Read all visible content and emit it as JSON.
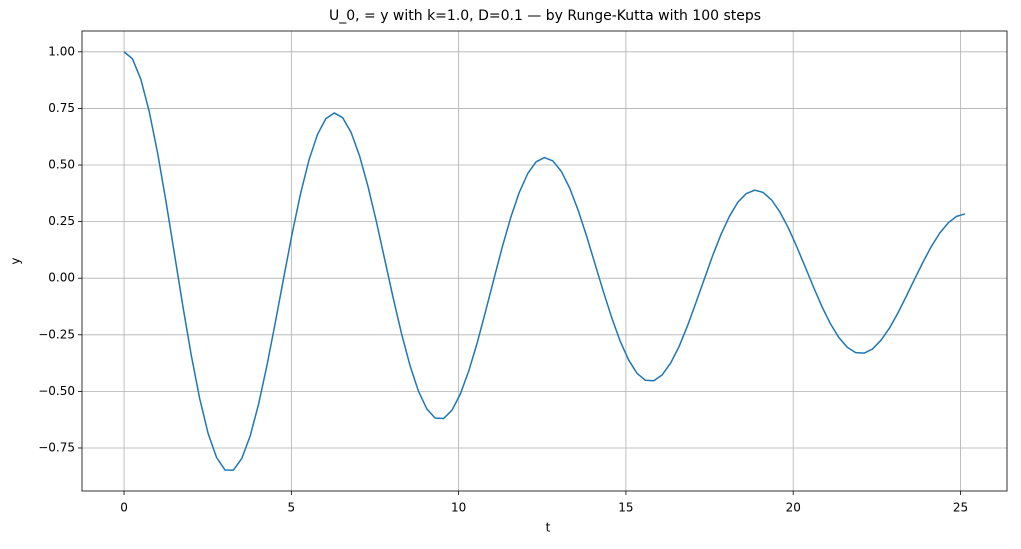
{
  "chart_data": {
    "type": "line",
    "title": "U_0, = y with k=1.0, D=0.1 — by Runge-Kutta with 100 steps",
    "x_label": "t",
    "y_label": "y",
    "x": [
      0,
      0.251,
      0.503,
      0.754,
      1.005,
      1.257,
      1.508,
      1.759,
      2.011,
      2.262,
      2.513,
      2.765,
      3.016,
      3.267,
      3.519,
      3.77,
      4.021,
      4.273,
      4.524,
      4.775,
      5.027,
      5.278,
      5.529,
      5.781,
      6.032,
      6.283,
      6.535,
      6.786,
      7.037,
      7.288,
      7.54,
      7.791,
      8.042,
      8.294,
      8.545,
      8.796,
      9.048,
      9.299,
      9.55,
      9.802,
      10.053,
      10.304,
      10.556,
      10.807,
      11.058,
      11.31,
      11.561,
      11.812,
      12.064,
      12.315,
      12.566,
      12.818,
      13.069,
      13.32,
      13.572,
      13.823,
      14.074,
      14.326,
      14.577,
      14.828,
      15.08,
      15.331,
      15.582,
      15.834,
      16.085,
      16.336,
      16.588,
      16.839,
      17.09,
      17.342,
      17.593,
      17.844,
      18.096,
      18.347,
      18.598,
      18.85,
      19.101,
      19.352,
      19.604,
      19.855,
      20.106,
      20.358,
      20.609,
      20.86,
      21.112,
      21.363,
      21.614,
      21.865,
      22.117,
      22.368,
      22.619,
      22.871,
      23.122,
      23.373,
      23.625,
      23.876,
      24.127,
      24.379,
      24.63,
      24.881,
      25.133
    ],
    "series": [
      {
        "color": "#1f77b4",
        "values": [
          1.0,
          0.969,
          0.878,
          0.735,
          0.551,
          0.336,
          0.106,
          -0.125,
          -0.342,
          -0.533,
          -0.686,
          -0.792,
          -0.847,
          -0.848,
          -0.796,
          -0.697,
          -0.556,
          -0.384,
          -0.193,
          0.005,
          0.199,
          0.375,
          0.523,
          0.635,
          0.705,
          0.73,
          0.709,
          0.644,
          0.541,
          0.407,
          0.251,
          0.083,
          -0.086,
          -0.245,
          -0.385,
          -0.498,
          -0.577,
          -0.618,
          -0.62,
          -0.583,
          -0.511,
          -0.409,
          -0.285,
          -0.145,
          -0.001,
          0.141,
          0.27,
          0.379,
          0.462,
          0.514,
          0.533,
          0.518,
          0.472,
          0.398,
          0.3,
          0.187,
          0.064,
          -0.059,
          -0.175,
          -0.278,
          -0.361,
          -0.42,
          -0.451,
          -0.453,
          -0.427,
          -0.375,
          -0.302,
          -0.211,
          -0.109,
          -0.004,
          0.1,
          0.194,
          0.274,
          0.336,
          0.374,
          0.389,
          0.379,
          0.346,
          0.292,
          0.222,
          0.139,
          0.05,
          -0.04,
          -0.126,
          -0.201,
          -0.262,
          -0.305,
          -0.329,
          -0.331,
          -0.313,
          -0.275,
          -0.222,
          -0.156,
          -0.082,
          -0.005,
          0.07,
          0.14,
          0.199,
          0.244,
          0.273,
          0.284
        ]
      }
    ],
    "xlim": [
      -1.257,
      26.39
    ],
    "ylim": [
      -0.94,
      1.092
    ],
    "xticks": [
      0,
      5,
      10,
      15,
      20,
      25
    ],
    "yticks": [
      {
        "value": -0.75,
        "label": "−0.75"
      },
      {
        "value": -0.5,
        "label": "−0.50"
      },
      {
        "value": -0.25,
        "label": "−0.25"
      },
      {
        "value": 0,
        "label": "0.00"
      },
      {
        "value": 0.25,
        "label": "0.25"
      },
      {
        "value": 0.5,
        "label": "0.50"
      },
      {
        "value": 0.75,
        "label": "0.75"
      },
      {
        "value": 1,
        "label": "1.00"
      }
    ],
    "grid": true
  }
}
